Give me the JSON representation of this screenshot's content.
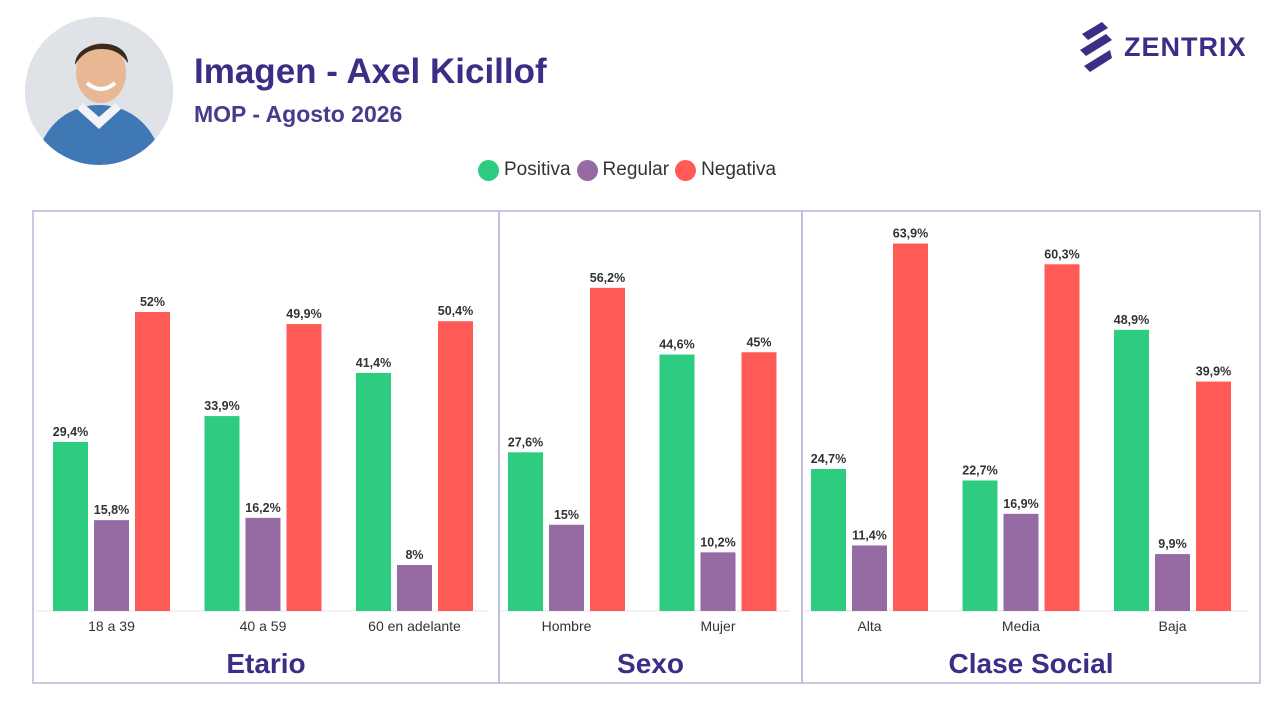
{
  "header": {
    "title": "Imagen - Axel Kicillof",
    "subtitle": "MOP - Agosto 2026",
    "brand": "ZENTRIX"
  },
  "colors": {
    "positiva": "#2ecc80",
    "regular": "#966ba3",
    "negativa": "#ff5a55",
    "brand": "#3d2d86",
    "panel_border": "#b9b5dc"
  },
  "chart_data": {
    "type": "bar",
    "title": "Imagen - Axel Kicillof",
    "subtitle": "MOP - Agosto 2026",
    "legend": {
      "placement": "top-center",
      "entries": [
        "Positiva",
        "Regular",
        "Negativa"
      ]
    },
    "grid": false,
    "value_range": [
      0,
      70
    ],
    "panels": [
      {
        "title": "Etario",
        "categories": [
          "18 a 39",
          "40 a 59",
          "60 en adelante"
        ],
        "series": [
          {
            "name": "Positiva",
            "values": [
              29.4,
              33.9,
              41.4
            ],
            "labels": [
              "29,4%",
              "33,9%",
              "41,4%"
            ]
          },
          {
            "name": "Regular",
            "values": [
              15.8,
              16.2,
              8
            ],
            "labels": [
              "15,8%",
              "16,2%",
              "8%"
            ]
          },
          {
            "name": "Negativa",
            "values": [
              52,
              49.9,
              50.4
            ],
            "labels": [
              "52%",
              "49,9%",
              "50,4%"
            ]
          }
        ]
      },
      {
        "title": "Sexo",
        "categories": [
          "Hombre",
          "Mujer"
        ],
        "series": [
          {
            "name": "Positiva",
            "values": [
              27.6,
              44.6
            ],
            "labels": [
              "27,6%",
              "44,6%"
            ]
          },
          {
            "name": "Regular",
            "values": [
              15,
              10.2
            ],
            "labels": [
              "15%",
              "10,2%"
            ]
          },
          {
            "name": "Negativa",
            "values": [
              56.2,
              45
            ],
            "labels": [
              "56,2%",
              "45%"
            ]
          }
        ]
      },
      {
        "title": "Clase Social",
        "categories": [
          "Alta",
          "Media",
          "Baja"
        ],
        "series": [
          {
            "name": "Positiva",
            "values": [
              24.7,
              22.7,
              48.9
            ],
            "labels": [
              "24,7%",
              "22,7%",
              "48,9%"
            ]
          },
          {
            "name": "Regular",
            "values": [
              11.4,
              16.9,
              9.9
            ],
            "labels": [
              "11,4%",
              "16,9%",
              "9,9%"
            ]
          },
          {
            "name": "Negativa",
            "values": [
              63.9,
              60.3,
              39.9
            ],
            "labels": [
              "63,9%",
              "60,3%",
              "39,9%"
            ]
          }
        ]
      }
    ]
  }
}
